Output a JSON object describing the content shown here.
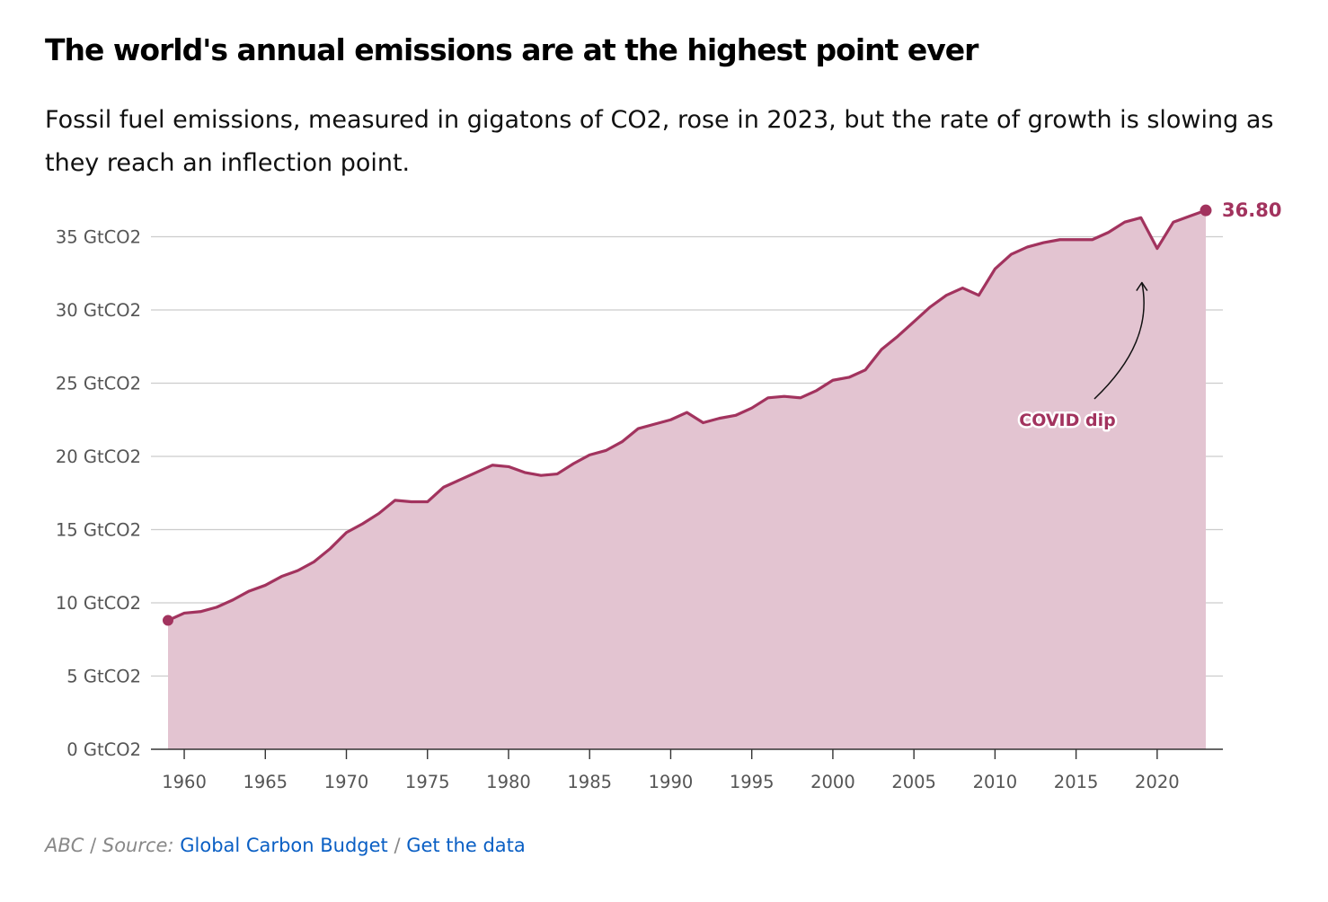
{
  "header": {
    "title": "The world's annual emissions are at the highest point ever",
    "subtitle": "Fossil fuel emissions, measured in gigatons of CO2, rose in 2023, but the rate of growth is slowing as they reach an inflection point."
  },
  "footer": {
    "org": "ABC",
    "separator": " / ",
    "source_label": "Source:",
    "source_link": "Global Carbon Budget",
    "data_link": "Get the data"
  },
  "colors": {
    "line": "#A2335E",
    "area": "#E3C4D1",
    "grid": "#CCCCCC",
    "axis": "#333333",
    "link": "#0A5FC4"
  },
  "chart_data": {
    "type": "area",
    "title": "The world's annual emissions are at the highest point ever",
    "xlabel": "",
    "ylabel": "",
    "xlim": [
      1959,
      2023
    ],
    "ylim": [
      0,
      35
    ],
    "y_ticks": [
      0,
      5,
      10,
      15,
      20,
      25,
      30,
      35
    ],
    "y_tick_suffix": " GtCO2",
    "x_ticks": [
      1960,
      1965,
      1970,
      1975,
      1980,
      1985,
      1990,
      1995,
      2000,
      2005,
      2010,
      2015,
      2020
    ],
    "grid": true,
    "end_label": "36.80",
    "series": [
      {
        "name": "Fossil fuel emissions (GtCO2)",
        "x": [
          1959,
          1960,
          1961,
          1962,
          1963,
          1964,
          1965,
          1966,
          1967,
          1968,
          1969,
          1970,
          1971,
          1972,
          1973,
          1974,
          1975,
          1976,
          1977,
          1978,
          1979,
          1980,
          1981,
          1982,
          1983,
          1984,
          1985,
          1986,
          1987,
          1988,
          1989,
          1990,
          1991,
          1992,
          1993,
          1994,
          1995,
          1996,
          1997,
          1998,
          1999,
          2000,
          2001,
          2002,
          2003,
          2004,
          2005,
          2006,
          2007,
          2008,
          2009,
          2010,
          2011,
          2012,
          2013,
          2014,
          2015,
          2016,
          2017,
          2018,
          2019,
          2020,
          2021,
          2022,
          2023
        ],
        "values": [
          8.8,
          9.3,
          9.4,
          9.7,
          10.2,
          10.8,
          11.2,
          11.8,
          12.2,
          12.8,
          13.7,
          14.8,
          15.4,
          16.1,
          17.0,
          16.9,
          16.9,
          17.9,
          18.4,
          18.9,
          19.4,
          19.3,
          18.9,
          18.7,
          18.8,
          19.5,
          20.1,
          20.4,
          21.0,
          21.9,
          22.2,
          22.5,
          23.0,
          22.3,
          22.6,
          22.8,
          23.3,
          24.0,
          24.1,
          24.0,
          24.5,
          25.2,
          25.4,
          25.9,
          27.3,
          28.2,
          29.2,
          30.2,
          31.0,
          31.5,
          31.0,
          32.8,
          33.8,
          34.3,
          34.6,
          34.8,
          34.8,
          34.8,
          35.3,
          36.0,
          36.3,
          34.2,
          36.0,
          36.4,
          36.8
        ]
      }
    ],
    "annotations": [
      {
        "text": "COVID dip",
        "x": 2020,
        "y": 34.2
      }
    ]
  }
}
